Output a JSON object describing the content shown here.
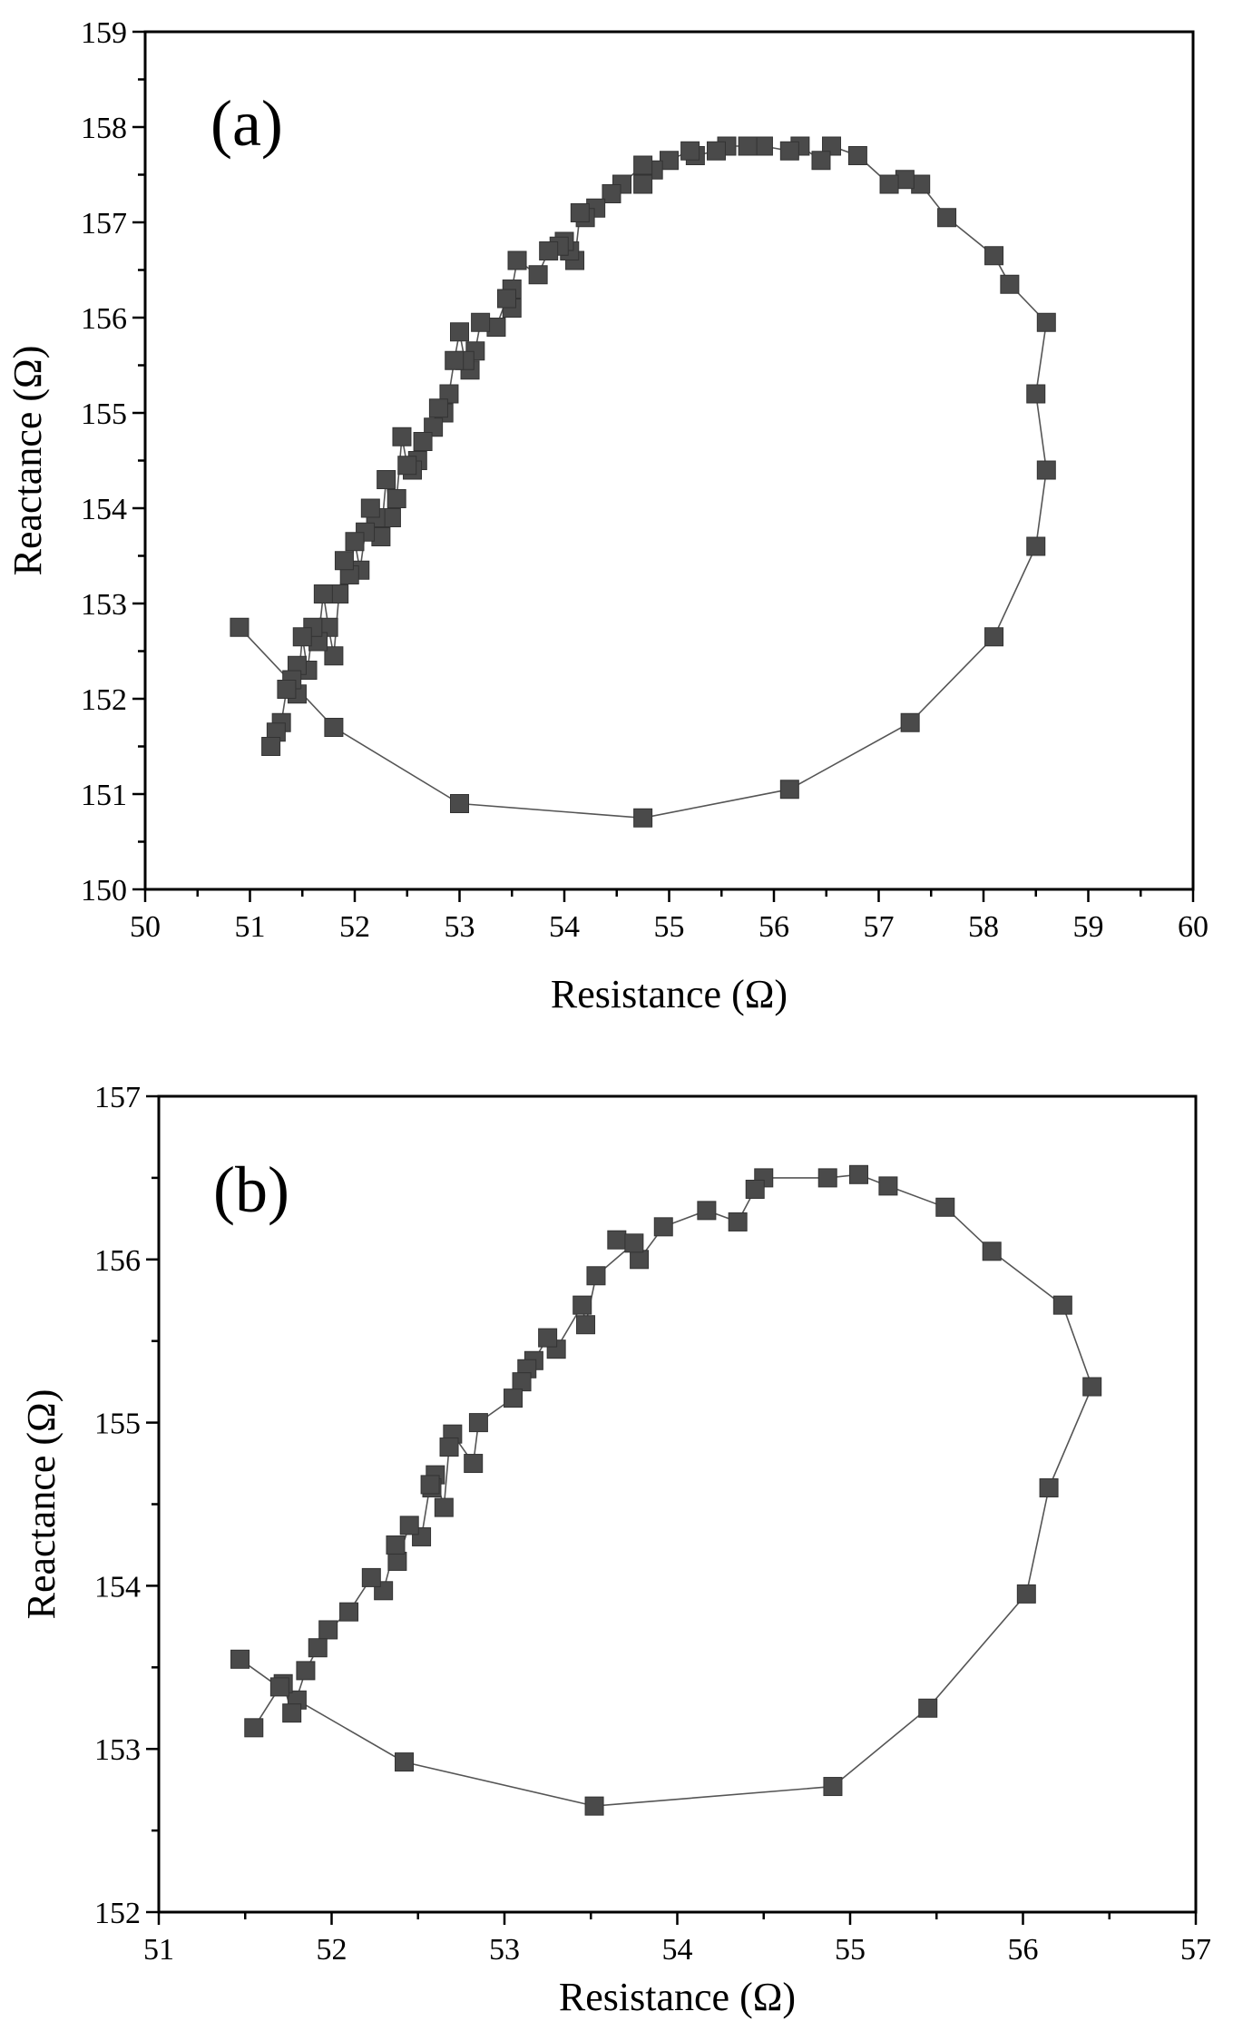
{
  "chart_data": [
    {
      "type": "scatter",
      "panel_label": "(a)",
      "xlabel": "Resistance (Ω)",
      "ylabel": "Reactance (Ω)",
      "xlim": [
        50,
        60
      ],
      "ylim": [
        150,
        159
      ],
      "xticks": [
        50,
        51,
        52,
        53,
        54,
        55,
        56,
        57,
        58,
        59,
        60
      ],
      "yticks": [
        150,
        151,
        152,
        153,
        154,
        155,
        156,
        157,
        158,
        159
      ],
      "grid": false,
      "connected": true,
      "marker": "square",
      "x": [
        50.9,
        51.8,
        53.0,
        54.75,
        56.15,
        57.3,
        58.1,
        58.5,
        58.6,
        58.5,
        58.6,
        58.25,
        58.1,
        57.65,
        57.4,
        57.25,
        57.1,
        56.8,
        56.55,
        56.45,
        56.25,
        56.15,
        55.9,
        55.75,
        55.55,
        55.45,
        55.25,
        55.2,
        55.0,
        54.85,
        54.75,
        54.75,
        54.55,
        54.45,
        54.3,
        54.2,
        54.15,
        54.1,
        54.05,
        54.0,
        53.95,
        53.85,
        53.75,
        53.55,
        53.5,
        53.5,
        53.45,
        53.35,
        53.2,
        53.15,
        53.1,
        53.05,
        53.0,
        52.95,
        52.9,
        52.85,
        52.8,
        52.75,
        52.65,
        52.6,
        52.55,
        52.5,
        52.45,
        52.4,
        52.35,
        52.3,
        52.25,
        52.2,
        52.15,
        52.1,
        52.05,
        52.0,
        51.95,
        51.9,
        51.85,
        51.8,
        51.75,
        51.7,
        51.65,
        51.6,
        51.55,
        51.5,
        51.45,
        51.45,
        51.4,
        51.35,
        51.3,
        51.25,
        51.2
      ],
      "y": [
        152.75,
        151.7,
        150.9,
        150.75,
        151.05,
        151.75,
        152.65,
        153.6,
        154.4,
        155.2,
        155.95,
        156.35,
        156.65,
        157.05,
        157.4,
        157.45,
        157.4,
        157.7,
        157.8,
        157.65,
        157.8,
        157.75,
        157.8,
        157.8,
        157.8,
        157.75,
        157.7,
        157.75,
        157.65,
        157.55,
        157.4,
        157.6,
        157.4,
        157.3,
        157.15,
        157.05,
        157.1,
        156.6,
        156.7,
        156.8,
        156.75,
        156.7,
        156.45,
        156.6,
        156.3,
        156.1,
        156.2,
        155.9,
        155.95,
        155.65,
        155.45,
        155.55,
        155.85,
        155.55,
        155.2,
        155.0,
        155.05,
        154.85,
        154.7,
        154.5,
        154.4,
        154.45,
        154.75,
        154.1,
        153.9,
        154.3,
        153.7,
        153.9,
        154.0,
        153.75,
        153.35,
        153.65,
        153.3,
        153.45,
        153.1,
        152.45,
        152.75,
        153.1,
        152.6,
        152.75,
        152.3,
        152.65,
        152.05,
        152.35,
        152.2,
        152.1,
        151.75,
        151.65,
        151.5
      ]
    },
    {
      "type": "scatter",
      "panel_label": "(b)",
      "xlabel": "Resistance (Ω)",
      "ylabel": "Reactance (Ω)",
      "xlim": [
        51,
        57
      ],
      "ylim": [
        152,
        157
      ],
      "xticks": [
        51,
        52,
        53,
        54,
        55,
        56,
        57
      ],
      "yticks": [
        152,
        153,
        154,
        155,
        156,
        157
      ],
      "grid": false,
      "connected": true,
      "marker": "square",
      "x": [
        51.47,
        51.8,
        52.42,
        53.52,
        54.9,
        55.45,
        56.02,
        56.15,
        56.4,
        56.23,
        55.82,
        55.55,
        55.22,
        55.05,
        54.87,
        54.5,
        54.45,
        54.35,
        54.17,
        53.92,
        53.78,
        53.65,
        53.75,
        53.53,
        53.47,
        53.45,
        53.3,
        53.25,
        53.17,
        53.13,
        53.1,
        53.05,
        52.85,
        52.82,
        52.7,
        52.68,
        52.65,
        52.6,
        52.58,
        52.57,
        52.52,
        52.45,
        52.38,
        52.37,
        52.3,
        52.23,
        52.1,
        51.98,
        51.92,
        51.85,
        51.77,
        51.72,
        51.7,
        51.55
      ],
      "y": [
        153.55,
        153.3,
        152.92,
        152.65,
        152.77,
        153.25,
        153.95,
        154.6,
        155.22,
        155.72,
        156.05,
        156.32,
        156.45,
        156.52,
        156.5,
        156.5,
        156.43,
        156.23,
        156.3,
        156.2,
        156.0,
        156.12,
        156.1,
        155.9,
        155.6,
        155.72,
        155.45,
        155.52,
        155.38,
        155.33,
        155.25,
        155.15,
        155.0,
        154.75,
        154.93,
        154.85,
        154.48,
        154.68,
        154.6,
        154.62,
        154.3,
        154.37,
        154.15,
        154.25,
        153.97,
        154.05,
        153.84,
        153.73,
        153.62,
        153.48,
        153.22,
        153.4,
        153.38,
        153.13
      ]
    }
  ]
}
